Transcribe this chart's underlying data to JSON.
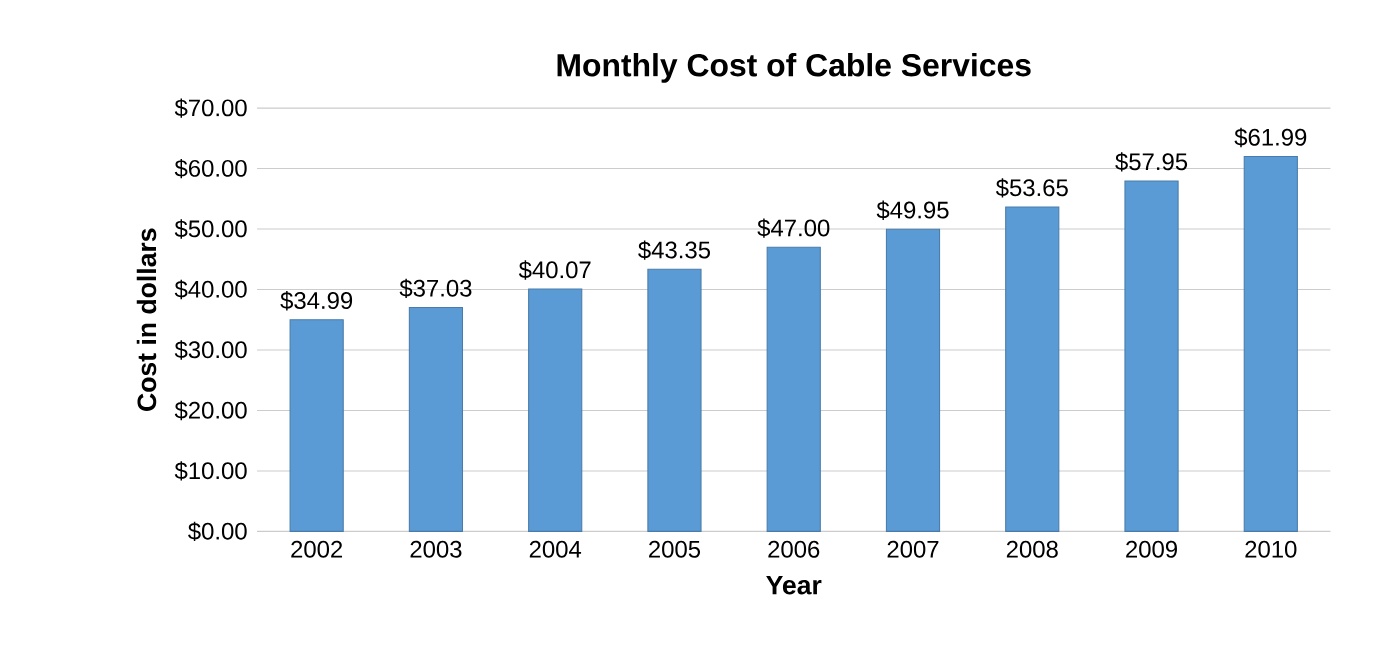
{
  "chart_data": {
    "type": "bar",
    "title": "Monthly Cost of Cable Services",
    "xlabel": "Year",
    "ylabel": "Cost in dollars",
    "categories": [
      "2002",
      "2003",
      "2004",
      "2005",
      "2006",
      "2007",
      "2008",
      "2009",
      "2010"
    ],
    "values": [
      34.99,
      37.03,
      40.07,
      43.35,
      47.0,
      49.95,
      53.65,
      57.95,
      61.99
    ],
    "value_labels": [
      "$34.99",
      "$37.03",
      "$40.07",
      "$43.35",
      "$47.00",
      "$49.95",
      "$53.65",
      "$57.95",
      "$61.99"
    ],
    "color": "#5b9bd5",
    "ylim": [
      0,
      70
    ],
    "yticks": [
      {
        "value": 0,
        "label": "$0.00"
      },
      {
        "value": 10,
        "label": "$10.00"
      },
      {
        "value": 20,
        "label": "$20.00"
      },
      {
        "value": 30,
        "label": "$30.00"
      },
      {
        "value": 40,
        "label": "$40.00"
      },
      {
        "value": 50,
        "label": "$50.00"
      },
      {
        "value": 60,
        "label": "$60.00"
      },
      {
        "value": 70,
        "label": "$70.00"
      }
    ],
    "grid": "y"
  }
}
